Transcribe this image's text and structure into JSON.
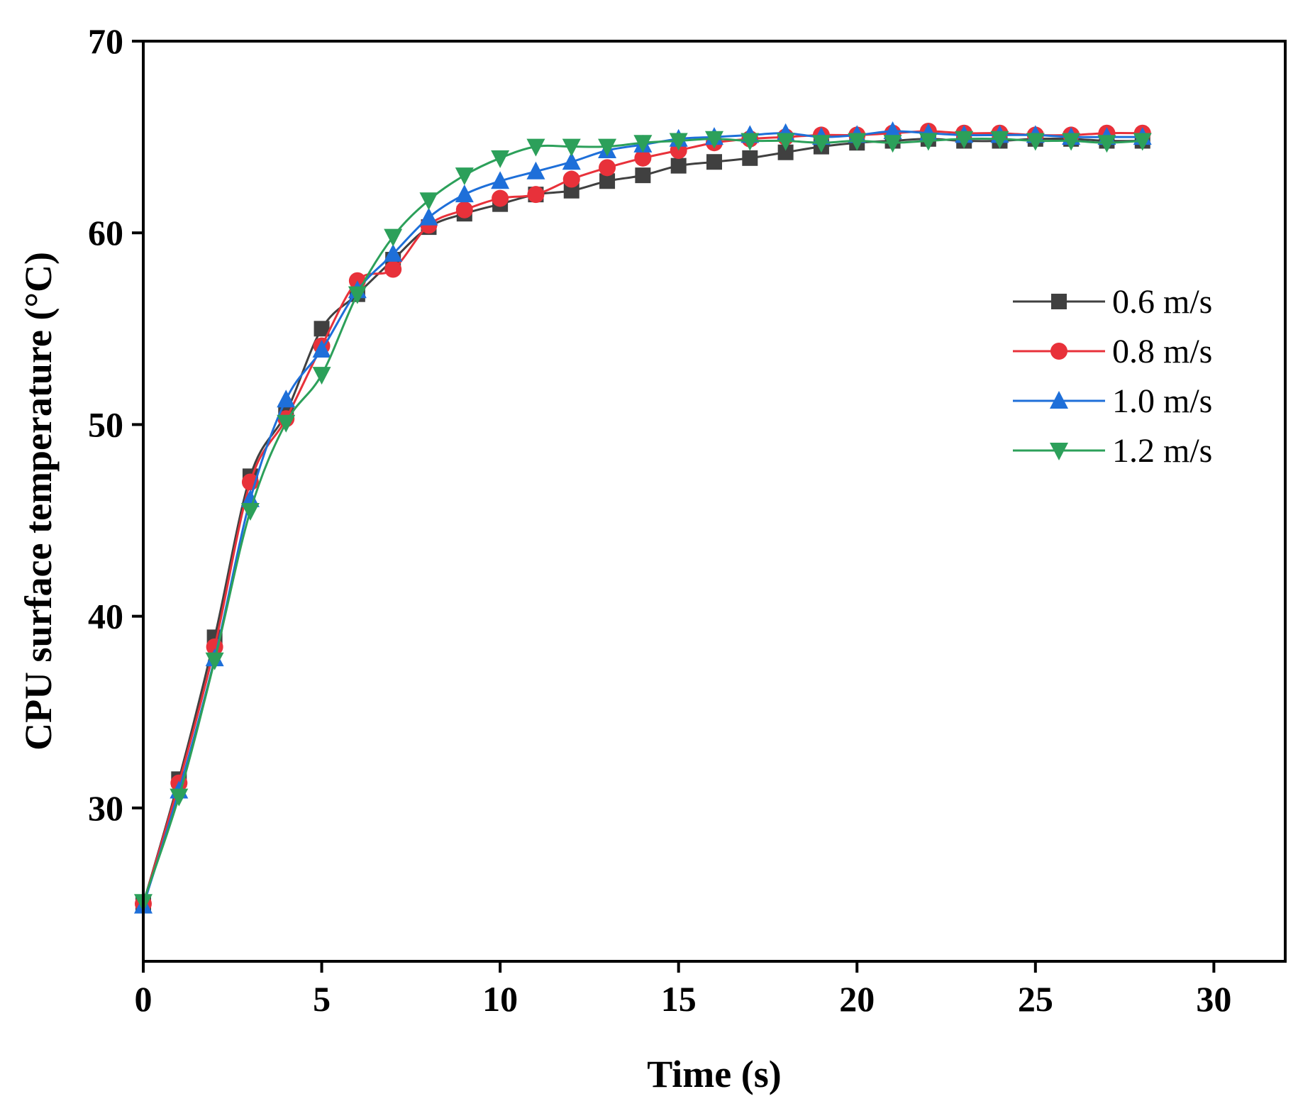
{
  "chart_data": {
    "type": "line",
    "title": "",
    "xlabel": "Time (s)",
    "ylabel": "CPU surface temperature (°C)",
    "xlim": [
      0,
      32
    ],
    "ylim": [
      22,
      70
    ],
    "xticks": [
      0,
      5,
      10,
      15,
      20,
      25,
      30
    ],
    "yticks": [
      30,
      40,
      50,
      60,
      70
    ],
    "x": [
      0,
      1,
      2,
      3,
      4,
      5,
      6,
      7,
      8,
      9,
      10,
      11,
      12,
      13,
      14,
      15,
      16,
      17,
      18,
      19,
      20,
      21,
      22,
      23,
      24,
      25,
      26,
      27,
      28
    ],
    "legend_position": "right",
    "series": [
      {
        "name": "0.6 m/s",
        "color": "#404040",
        "marker": "square",
        "values": [
          25.0,
          31.5,
          38.9,
          47.3,
          50.6,
          55.0,
          56.8,
          58.6,
          60.3,
          61.0,
          61.5,
          62.0,
          62.2,
          62.7,
          63.0,
          63.5,
          63.7,
          63.9,
          64.2,
          64.5,
          64.7,
          64.8,
          64.9,
          64.8,
          64.8,
          64.9,
          64.9,
          64.8,
          64.8
        ]
      },
      {
        "name": "0.8 m/s",
        "color": "#e8313a",
        "marker": "circle",
        "values": [
          25.0,
          31.3,
          38.4,
          47.0,
          50.3,
          54.1,
          57.5,
          58.1,
          60.4,
          61.2,
          61.8,
          62.0,
          62.8,
          63.4,
          63.9,
          64.3,
          64.7,
          64.9,
          65.0,
          65.1,
          65.1,
          65.2,
          65.3,
          65.2,
          65.2,
          65.1,
          65.1,
          65.2,
          65.2
        ]
      },
      {
        "name": "1.0 m/s",
        "color": "#1e6fd9",
        "marker": "triangle-up",
        "values": [
          24.9,
          30.9,
          37.8,
          46.1,
          51.3,
          53.9,
          57.0,
          58.9,
          60.8,
          62.0,
          62.7,
          63.2,
          63.7,
          64.3,
          64.6,
          64.9,
          65.0,
          65.1,
          65.2,
          65.0,
          65.1,
          65.3,
          65.2,
          65.1,
          65.1,
          65.1,
          65.0,
          65.0,
          65.0
        ]
      },
      {
        "name": "1.2 m/s",
        "color": "#2ca05a",
        "marker": "triangle-down",
        "values": [
          25.1,
          30.6,
          37.7,
          45.5,
          50.1,
          52.6,
          56.8,
          59.8,
          61.7,
          63.0,
          63.9,
          64.5,
          64.5,
          64.5,
          64.7,
          64.8,
          64.9,
          64.8,
          64.8,
          64.7,
          64.8,
          64.7,
          64.8,
          64.9,
          64.9,
          64.8,
          64.8,
          64.7,
          64.8
        ]
      }
    ]
  }
}
